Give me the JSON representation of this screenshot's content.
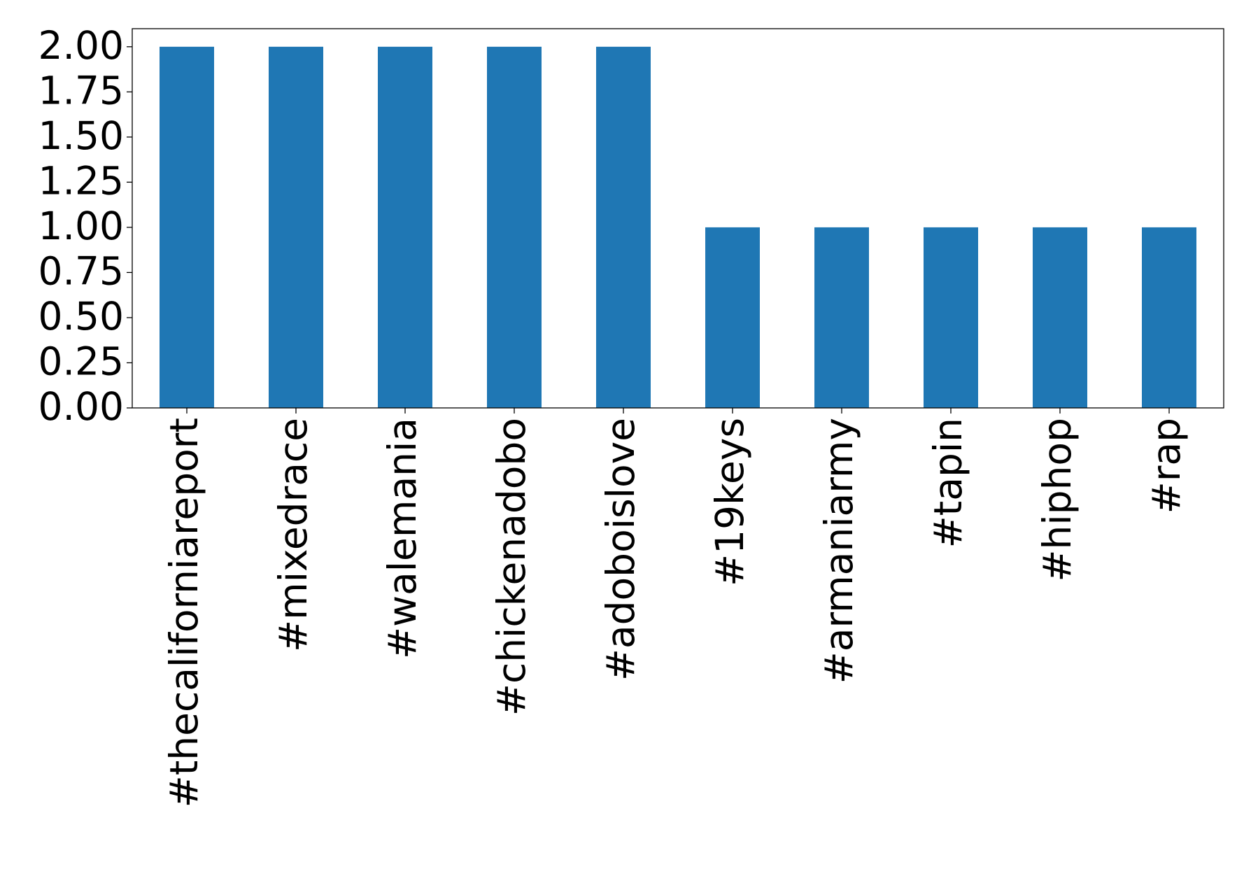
{
  "chart_data": {
    "type": "bar",
    "categories": [
      "#thecaliforniareport",
      "#mixedrace",
      "#walemania",
      "#chickenadobo",
      "#adoboislove",
      "#19keys",
      "#armaniarmy",
      "#tapin",
      "#hiphop",
      "#rap"
    ],
    "values": [
      2,
      2,
      2,
      2,
      2,
      1,
      1,
      1,
      1,
      1
    ],
    "color": "#1f77b4",
    "ylim": [
      0,
      2.1
    ],
    "yticks": [
      {
        "value": 0,
        "label": "0.00"
      },
      {
        "value": 0.25,
        "label": "0.25"
      },
      {
        "value": 0.5,
        "label": "0.50"
      },
      {
        "value": 0.75,
        "label": "0.75"
      },
      {
        "value": 1,
        "label": "1.00"
      },
      {
        "value": 1.25,
        "label": "1.25"
      },
      {
        "value": 1.5,
        "label": "1.50"
      },
      {
        "value": 1.75,
        "label": "1.75"
      },
      {
        "value": 2,
        "label": "2.00"
      }
    ],
    "grid": false
  }
}
